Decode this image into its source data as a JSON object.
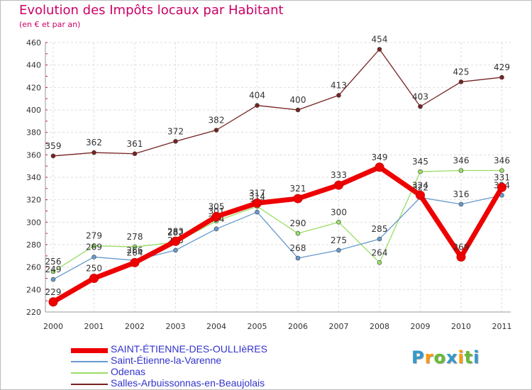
{
  "header": {
    "title": "Evolution des Impôts locaux par Habitant",
    "subtitle": "(en € et par an)"
  },
  "chart_data": {
    "type": "line",
    "title": "Evolution des Impôts locaux par Habitant",
    "ylabel": "(en € et par an)",
    "xlabel": "",
    "ylim": [
      220,
      460
    ],
    "yticks": [
      220,
      240,
      260,
      280,
      300,
      320,
      340,
      360,
      380,
      400,
      420,
      440,
      460
    ],
    "grid": true,
    "legend_position": "bottom-left",
    "x": [
      "2000",
      "2001",
      "2002",
      "2003",
      "2004",
      "2005",
      "2006",
      "2007",
      "2008",
      "2009",
      "2010",
      "2011"
    ],
    "series": [
      {
        "name": "SAINT-ÉTIENNE-DES-OULLIèRES",
        "color": "#ee0000",
        "values": [
          229,
          250,
          264,
          283,
          305,
          317,
          321,
          333,
          349,
          324,
          269,
          331
        ]
      },
      {
        "name": "Saint-Étienne-la-Varenne",
        "color": "#6699cc",
        "values": [
          249,
          269,
          266,
          275,
          294,
          309,
          268,
          275,
          285,
          322,
          316,
          324
        ]
      },
      {
        "name": "Odenas",
        "color": "#99dd66",
        "values": [
          256,
          279,
          278,
          282,
          301,
          314,
          290,
          300,
          264,
          345,
          346,
          346
        ]
      },
      {
        "name": "Salles-Arbuissonnas-en-Beaujolais",
        "color": "#772222",
        "values": [
          359,
          362,
          361,
          372,
          382,
          404,
          400,
          413,
          454,
          403,
          425,
          429
        ]
      }
    ]
  },
  "logo": {
    "letters": [
      "P",
      "r",
      "o",
      "x",
      "i",
      "t",
      "i"
    ],
    "colors": [
      "#3399cc",
      "#ff9900",
      "#66bb33",
      "#3399cc",
      "#ff9900",
      "#66bb33",
      "#3399cc"
    ]
  }
}
